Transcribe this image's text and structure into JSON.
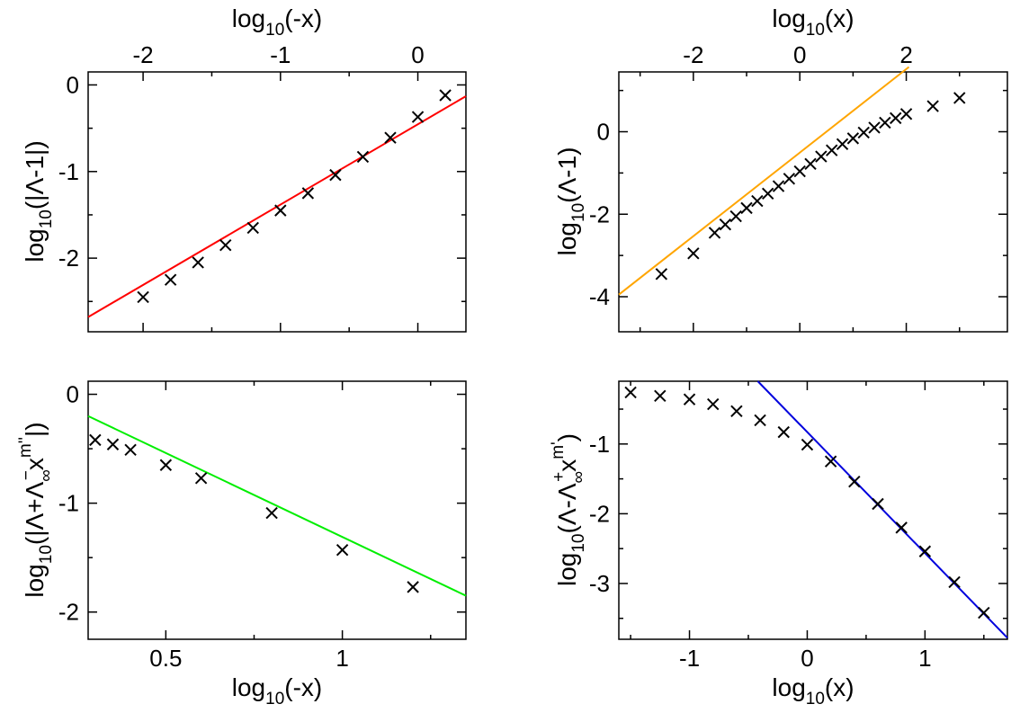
{
  "colors": {
    "red": "#ff0000",
    "orange": "#ffa500",
    "green": "#00ee00",
    "blue": "#0000dd",
    "marker": "#000000"
  },
  "chart_data": [
    {
      "type": "scatter",
      "panel": "top-left",
      "top_axis_label": {
        "base": "log",
        "sub": "10",
        "rest": "(-x)"
      },
      "y_axis_label": {
        "base": "log",
        "sub": "10",
        "rest": "(|Λ-1|)"
      },
      "xlim": [
        -2.4,
        0.35
      ],
      "ylim": [
        -2.85,
        0.15
      ],
      "x_ticks": [
        {
          "v": -2,
          "label": "-2"
        },
        {
          "v": -1,
          "label": "-1"
        },
        {
          "v": 0,
          "label": "0"
        }
      ],
      "y_ticks": [
        {
          "v": 0,
          "label": "0"
        },
        {
          "v": -1,
          "label": "-1"
        },
        {
          "v": -2,
          "label": "-2"
        }
      ],
      "points": {
        "x": [
          -2.0,
          -1.8,
          -1.6,
          -1.4,
          -1.2,
          -1.0,
          -0.8,
          -0.6,
          -0.4,
          -0.2,
          0.0,
          0.2
        ],
        "y": [
          -2.45,
          -2.25,
          -2.05,
          -1.85,
          -1.65,
          -1.45,
          -1.25,
          -1.04,
          -0.83,
          -0.61,
          -0.37,
          -0.12
        ]
      },
      "fit": {
        "color_key": "red",
        "x": [
          -2.4,
          0.35
        ],
        "y": [
          -2.68,
          -0.13
        ]
      }
    },
    {
      "type": "scatter",
      "panel": "top-right",
      "top_axis_label": {
        "base": "log",
        "sub": "10",
        "rest": "(x)"
      },
      "y_axis_label": {
        "base": "log",
        "sub": "10",
        "rest": "(Λ-1)"
      },
      "xlim": [
        -3.4,
        3.9
      ],
      "ylim": [
        -4.85,
        1.45
      ],
      "x_ticks": [
        {
          "v": -2,
          "label": "-2"
        },
        {
          "v": 0,
          "label": "0"
        },
        {
          "v": 2,
          "label": "2"
        }
      ],
      "y_ticks": [
        {
          "v": 0,
          "label": "0"
        },
        {
          "v": -2,
          "label": "-2"
        },
        {
          "v": -4,
          "label": "-4"
        }
      ],
      "points": {
        "x": [
          -2.6,
          -2.0,
          -1.6,
          -1.4,
          -1.2,
          -1.0,
          -0.8,
          -0.6,
          -0.4,
          -0.2,
          0.0,
          0.2,
          0.4,
          0.6,
          0.8,
          1.0,
          1.2,
          1.4,
          1.6,
          1.8,
          2.0,
          2.5,
          3.0
        ],
        "y": [
          -3.45,
          -2.95,
          -2.45,
          -2.25,
          -2.05,
          -1.85,
          -1.68,
          -1.5,
          -1.32,
          -1.14,
          -0.96,
          -0.78,
          -0.6,
          -0.45,
          -0.3,
          -0.16,
          -0.02,
          0.1,
          0.22,
          0.33,
          0.43,
          0.62,
          0.82
        ]
      },
      "fit": {
        "color_key": "orange",
        "x": [
          -3.4,
          2.05
        ],
        "y": [
          -3.95,
          1.57
        ]
      }
    },
    {
      "type": "scatter",
      "panel": "bottom-left",
      "x_axis_label": {
        "base": "log",
        "sub": "10",
        "rest": "(-x)"
      },
      "y_axis_label": {
        "base": "log",
        "sub": "10",
        "rest": "(|Λ+Λ",
        "sub2": "∞",
        "sup2": "−",
        "rest2": "x",
        "sup3": "m''",
        "rest3": "|)"
      },
      "xlim": [
        0.28,
        1.35
      ],
      "ylim": [
        -2.25,
        0.12
      ],
      "x_ticks": [
        {
          "v": 0.5,
          "label": "0.5"
        },
        {
          "v": 1.0,
          "label": "1"
        }
      ],
      "y_ticks": [
        {
          "v": 0,
          "label": "0"
        },
        {
          "v": -1,
          "label": "-1"
        },
        {
          "v": -2,
          "label": "-2"
        }
      ],
      "points": {
        "x": [
          0.3,
          0.35,
          0.4,
          0.5,
          0.6,
          0.8,
          1.0,
          1.2
        ],
        "y": [
          -0.42,
          -0.46,
          -0.51,
          -0.65,
          -0.77,
          -1.09,
          -1.43,
          -1.77
        ]
      },
      "fit": {
        "color_key": "green",
        "x": [
          0.28,
          1.35
        ],
        "y": [
          -0.2,
          -1.85
        ]
      }
    },
    {
      "type": "scatter",
      "panel": "bottom-right",
      "x_axis_label": {
        "base": "log",
        "sub": "10",
        "rest": "(x)"
      },
      "y_axis_label": {
        "base": "log",
        "sub": "10",
        "rest": "(Λ-Λ",
        "sub2": "∞",
        "sup2": "+",
        "rest2": "x",
        "sup3": "m'",
        "rest3": ")"
      },
      "xlim": [
        -1.6,
        1.7
      ],
      "ylim": [
        -3.8,
        -0.1
      ],
      "x_ticks": [
        {
          "v": -1,
          "label": "-1"
        },
        {
          "v": 0,
          "label": "0"
        },
        {
          "v": 1,
          "label": "1"
        }
      ],
      "y_ticks": [
        {
          "v": -1,
          "label": "-1"
        },
        {
          "v": -2,
          "label": "-2"
        },
        {
          "v": -3,
          "label": "-3"
        }
      ],
      "points": {
        "x": [
          -1.5,
          -1.25,
          -1.0,
          -0.8,
          -0.6,
          -0.4,
          -0.2,
          0.0,
          0.2,
          0.4,
          0.6,
          0.8,
          1.0,
          1.25,
          1.5
        ],
        "y": [
          -0.26,
          -0.31,
          -0.36,
          -0.43,
          -0.53,
          -0.66,
          -0.83,
          -1.01,
          -1.25,
          -1.54,
          -1.86,
          -2.2,
          -2.54,
          -2.98,
          -3.42
        ]
      },
      "fit": {
        "color_key": "blue",
        "x": [
          -0.42,
          1.7
        ],
        "y": [
          -0.1,
          -3.78
        ]
      }
    }
  ]
}
